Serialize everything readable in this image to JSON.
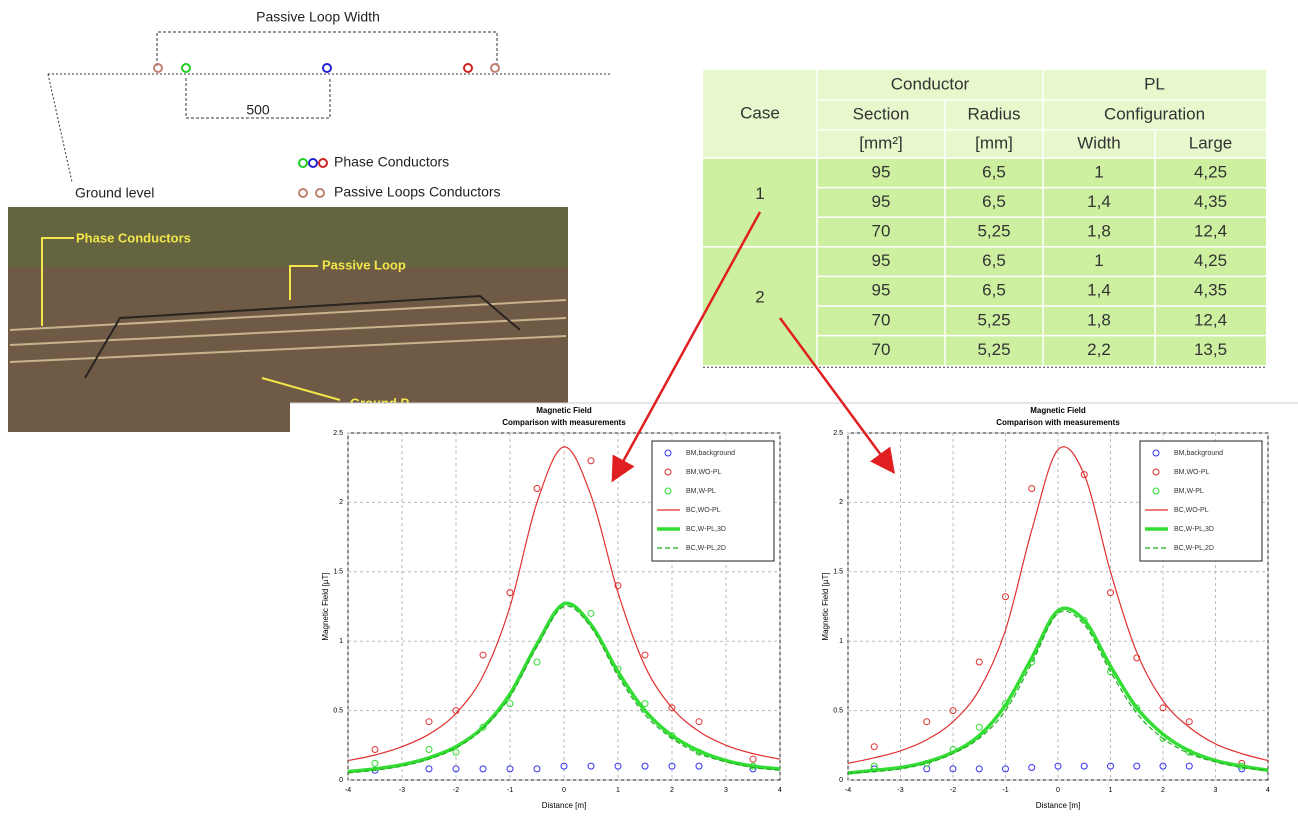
{
  "diagram": {
    "width_label": "Passive Loop Width",
    "spacing_label": "500",
    "ground_label": "Ground level",
    "legend_phase": "Phase Conductors",
    "legend_loops": "Passive Loops Conductors"
  },
  "photo": {
    "phase_label": "Phase Conductors",
    "loop_label": "Passive Loop",
    "ground_label": "Ground P"
  },
  "table": {
    "header": {
      "case": "Case",
      "conductor": "Conductor",
      "pl": "PL",
      "section": "Section",
      "radius": "Radius",
      "configuration": "Configuration",
      "section_unit": "[mm²]",
      "radius_unit": "[mm]",
      "width": "Width",
      "large": "Large"
    },
    "cases": [
      {
        "case": "1",
        "rows": [
          [
            "95",
            "6,5",
            "1",
            "4,25"
          ],
          [
            "95",
            "6,5",
            "1,4",
            "4,35"
          ],
          [
            "70",
            "5,25",
            "1,8",
            "12,4"
          ]
        ]
      },
      {
        "case": "2",
        "rows": [
          [
            "95",
            "6,5",
            "1",
            "4,25"
          ],
          [
            "95",
            "6,5",
            "1,4",
            "4,35"
          ],
          [
            "70",
            "5,25",
            "1,8",
            "12,4"
          ],
          [
            "70",
            "5,25",
            "2,2",
            "13,5"
          ]
        ]
      }
    ]
  },
  "chart_data": [
    {
      "type": "line",
      "title": "Magnetic Field",
      "subtitle": "Comparison with measurements",
      "xlabel": "Distance [m]",
      "ylabel": "Magnetic Field [µT]",
      "xlim": [
        -4,
        4
      ],
      "ylim": [
        0,
        2.5
      ],
      "xticks": [
        -4,
        -3,
        -2,
        -1,
        0,
        1,
        2,
        3,
        4
      ],
      "yticks": [
        0,
        0.5,
        1,
        1.5,
        2,
        2.5
      ],
      "grid": true,
      "legend": "upper right",
      "series": [
        {
          "name": "BM,background",
          "color": "#3333ee",
          "style": "markers",
          "x": [
            -3.5,
            -2.5,
            -2,
            -1.5,
            -1,
            -0.5,
            0,
            0.5,
            1,
            1.5,
            2,
            2.5,
            3.5
          ],
          "values": [
            0.07,
            0.08,
            0.08,
            0.08,
            0.08,
            0.08,
            0.1,
            0.1,
            0.1,
            0.1,
            0.1,
            0.1,
            0.08
          ]
        },
        {
          "name": "BM,WO-PL",
          "color": "#e03030",
          "style": "markers",
          "x": [
            -3.5,
            -2.5,
            -2,
            -1.5,
            -1,
            -0.5,
            0.5,
            1,
            1.5,
            2,
            2.5,
            3.5
          ],
          "values": [
            0.22,
            0.42,
            0.5,
            0.9,
            1.35,
            2.1,
            2.3,
            1.4,
            0.9,
            0.52,
            0.42,
            0.15
          ]
        },
        {
          "name": "BM,W-PL",
          "color": "#33dd33",
          "style": "markers",
          "x": [
            -3.5,
            -2.5,
            -2,
            -1.5,
            -1,
            -0.5,
            0.5,
            1,
            1.5,
            2,
            2.5,
            3.5
          ],
          "values": [
            0.12,
            0.22,
            0.2,
            0.38,
            0.55,
            0.85,
            1.2,
            0.8,
            0.55,
            0.32,
            0.2,
            0.1
          ]
        },
        {
          "name": "BC,WO-PL",
          "color": "#e03030",
          "style": "line",
          "linewidth": 1.2,
          "x": [
            -4,
            -3.5,
            -3,
            -2.5,
            -2,
            -1.5,
            -1,
            -0.5,
            0,
            0.5,
            1,
            1.5,
            2,
            2.5,
            3,
            3.5,
            4
          ],
          "values": [
            0.14,
            0.18,
            0.24,
            0.33,
            0.48,
            0.75,
            1.25,
            2.0,
            2.4,
            2.05,
            1.35,
            0.82,
            0.52,
            0.35,
            0.25,
            0.19,
            0.15
          ]
        },
        {
          "name": "BC,W-PL,3D",
          "color": "#33dd33",
          "style": "line",
          "linewidth": 3.5,
          "x": [
            -4,
            -3.5,
            -3,
            -2.5,
            -2,
            -1.5,
            -1,
            -0.5,
            0,
            0.5,
            1,
            1.5,
            2,
            2.5,
            3,
            3.5,
            4
          ],
          "values": [
            0.06,
            0.08,
            0.11,
            0.16,
            0.24,
            0.38,
            0.62,
            0.98,
            1.27,
            1.12,
            0.78,
            0.5,
            0.32,
            0.21,
            0.14,
            0.1,
            0.08
          ]
        },
        {
          "name": "BC,W-PL,2D",
          "color": "#22aa22",
          "style": "dashed",
          "linewidth": 1.2,
          "x": [
            -4,
            -3.5,
            -3,
            -2.5,
            -2,
            -1.5,
            -1,
            -0.5,
            0,
            0.5,
            1,
            1.5,
            2,
            2.5,
            3,
            3.5,
            4
          ],
          "values": [
            0.05,
            0.07,
            0.1,
            0.15,
            0.23,
            0.37,
            0.6,
            0.96,
            1.25,
            1.1,
            0.75,
            0.47,
            0.3,
            0.19,
            0.13,
            0.09,
            0.07
          ]
        }
      ]
    },
    {
      "type": "line",
      "title": "Magnetic Field",
      "subtitle": "Comparison with measurements",
      "xlabel": "Distance [m]",
      "ylabel": "Magnetic Field [µT]",
      "xlim": [
        -4,
        4
      ],
      "ylim": [
        0,
        2.5
      ],
      "xticks": [
        -4,
        -3,
        -2,
        -1,
        0,
        1,
        2,
        3,
        4
      ],
      "yticks": [
        0,
        0.5,
        1,
        1.5,
        2,
        2.5
      ],
      "grid": true,
      "legend": "upper right",
      "series": [
        {
          "name": "BM,background",
          "color": "#3333ee",
          "style": "markers",
          "x": [
            -3.5,
            -2.5,
            -2,
            -1.5,
            -1,
            -0.5,
            0,
            0.5,
            1,
            1.5,
            2,
            2.5,
            3.5
          ],
          "values": [
            0.08,
            0.08,
            0.08,
            0.08,
            0.08,
            0.09,
            0.1,
            0.1,
            0.1,
            0.1,
            0.1,
            0.1,
            0.08
          ]
        },
        {
          "name": "BM,WO-PL",
          "color": "#e03030",
          "style": "markers",
          "x": [
            -3.5,
            -2.5,
            -2,
            -1.5,
            -1,
            -0.5,
            0.5,
            1,
            1.5,
            2,
            2.5,
            3.5
          ],
          "values": [
            0.24,
            0.42,
            0.5,
            0.85,
            1.32,
            2.1,
            2.2,
            1.35,
            0.88,
            0.52,
            0.42,
            0.12
          ]
        },
        {
          "name": "BM,W-PL",
          "color": "#33dd33",
          "style": "markers",
          "x": [
            -3.5,
            -2.5,
            -2,
            -1.5,
            -1,
            -0.5,
            0.5,
            1,
            1.5,
            2,
            2.5,
            3.5
          ],
          "values": [
            0.1,
            0.12,
            0.22,
            0.38,
            0.55,
            0.85,
            1.15,
            0.78,
            0.52,
            0.3,
            0.2,
            0.1
          ]
        },
        {
          "name": "BC,WO-PL",
          "color": "#e03030",
          "style": "line",
          "linewidth": 1.2,
          "x": [
            -4,
            -3.5,
            -3,
            -2.5,
            -2,
            -1.5,
            -1,
            -0.5,
            0,
            0.5,
            1,
            1.5,
            2,
            2.5,
            3,
            3.5,
            4
          ],
          "values": [
            0.12,
            0.16,
            0.21,
            0.29,
            0.42,
            0.65,
            1.08,
            1.8,
            2.38,
            2.2,
            1.5,
            0.92,
            0.57,
            0.38,
            0.26,
            0.19,
            0.14
          ]
        },
        {
          "name": "BC,W-PL,3D",
          "color": "#33dd33",
          "style": "line",
          "linewidth": 3.5,
          "x": [
            -4,
            -3.5,
            -3,
            -2.5,
            -2,
            -1.5,
            -1,
            -0.5,
            0,
            0.5,
            1,
            1.5,
            2,
            2.5,
            3,
            3.5,
            4
          ],
          "values": [
            0.05,
            0.07,
            0.09,
            0.13,
            0.2,
            0.32,
            0.54,
            0.88,
            1.22,
            1.15,
            0.82,
            0.52,
            0.33,
            0.21,
            0.14,
            0.1,
            0.07
          ]
        },
        {
          "name": "BC,W-PL,2D",
          "color": "#22aa22",
          "style": "dashed",
          "linewidth": 1.2,
          "x": [
            -4,
            -3.5,
            -3,
            -2.5,
            -2,
            -1.5,
            -1,
            -0.5,
            0,
            0.5,
            1,
            1.5,
            2,
            2.5,
            3,
            3.5,
            4
          ],
          "values": [
            0.05,
            0.06,
            0.08,
            0.12,
            0.19,
            0.3,
            0.5,
            0.84,
            1.2,
            1.12,
            0.78,
            0.48,
            0.3,
            0.19,
            0.13,
            0.09,
            0.07
          ]
        }
      ]
    }
  ]
}
